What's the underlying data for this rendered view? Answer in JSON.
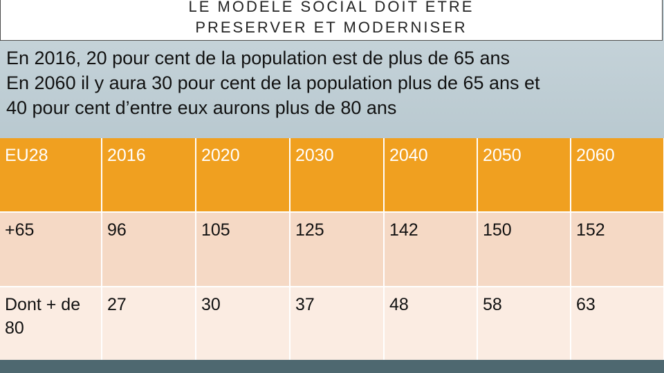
{
  "title": {
    "line1": "LE MODELE SOCIAL  DOIT ETRE",
    "line2": "PRESERVER ET MODERNISER"
  },
  "intro": {
    "line1": "En 2016, 20 pour cent de la population est de plus de 65 ans",
    "line2": "En 2060 il y aura 30 pour cent de la population plus de 65 ans et",
    "line3": "40 pour cent d’entre eux aurons plus de 80 ans"
  },
  "table": {
    "header": [
      "EU28",
      "2016",
      "2020",
      "2030",
      "2040",
      "2050",
      "2060"
    ],
    "rows": [
      [
        "+65",
        "96",
        "105",
        "125",
        "142",
        "150",
        "152"
      ],
      [
        "Dont + de 80",
        "27",
        "30",
        "37",
        "48",
        "58",
        "63"
      ]
    ]
  },
  "colors": {
    "header_bg": "#f0a020",
    "row1_bg": "#f5d9c5",
    "row2_bg": "#fbece2",
    "bottom_bar": "#4e6870"
  }
}
